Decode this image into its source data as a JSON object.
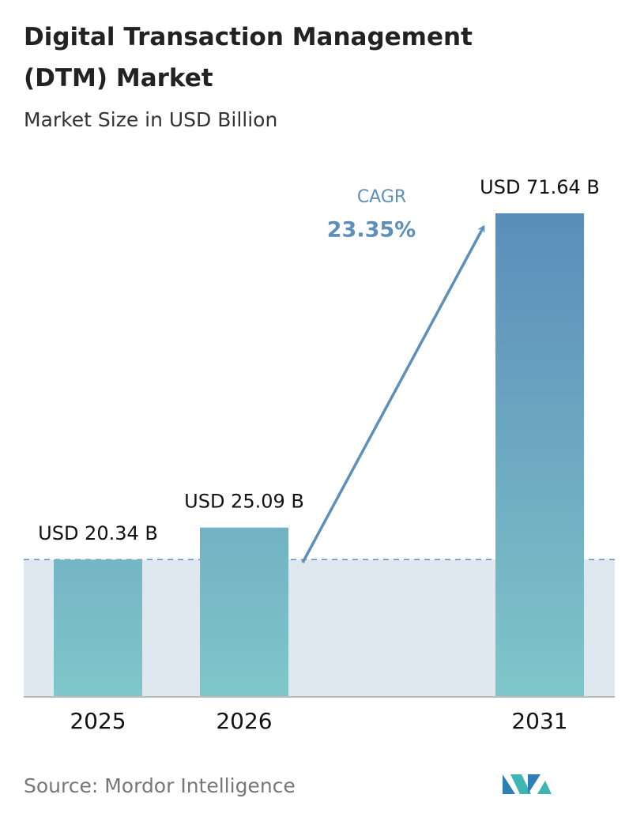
{
  "chart_data": {
    "type": "bar",
    "title": "Digital Transaction Management (DTM) Market",
    "subtitle": "Market Size in USD Billion",
    "categories": [
      "2025",
      "2026",
      "2031"
    ],
    "values": [
      20.34,
      25.09,
      71.64
    ],
    "value_labels": [
      "USD 20.34 B",
      "USD 25.09 B",
      "USD 71.64 B"
    ],
    "colors": [
      "#5b8dba",
      "#7fc6c9"
    ],
    "annotation": {
      "label": "CAGR",
      "value": "23.35%"
    },
    "source": "Source: Mordor Intelligence"
  }
}
